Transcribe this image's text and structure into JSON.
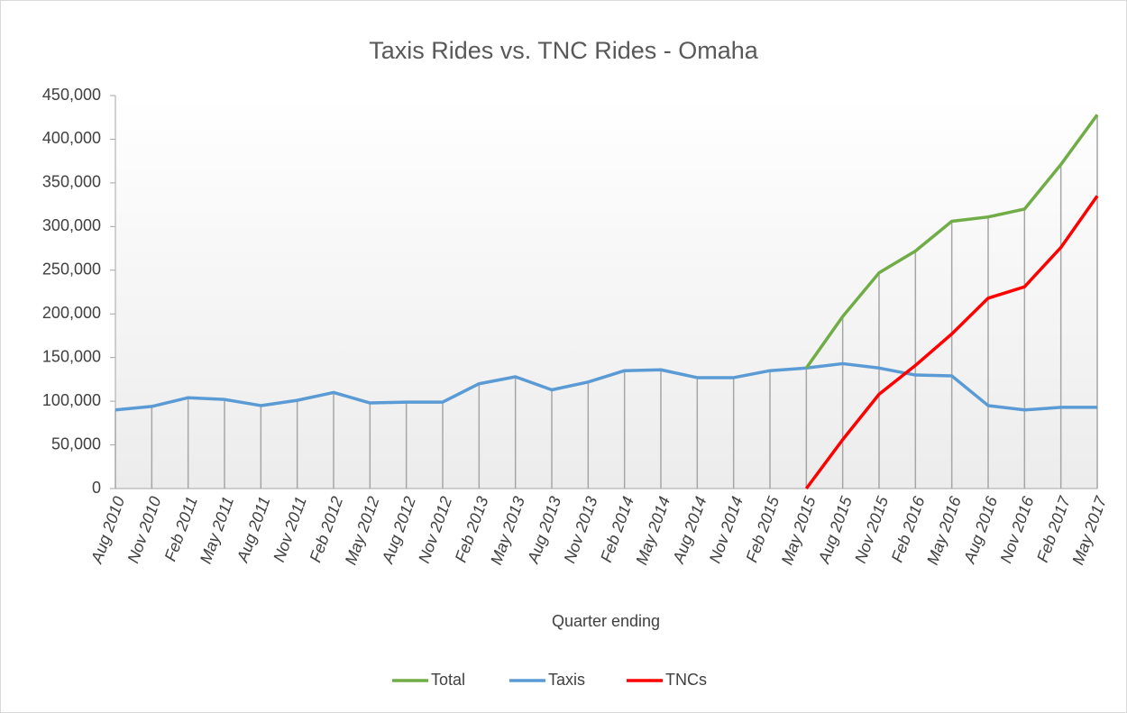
{
  "chart_data": {
    "type": "line",
    "title": "Taxis Rides vs. TNC Rides - Omaha",
    "x_label": "Quarter ending",
    "categories": [
      "Aug 2010",
      "Nov 2010",
      "Feb 2011",
      "May 2011",
      "Aug 2011",
      "Nov 2011",
      "Feb 2012",
      "May 2012",
      "Aug 2012",
      "Nov 2012",
      "Feb 2013",
      "May 2013",
      "Aug 2013",
      "Nov 2013",
      "Feb 2014",
      "May 2014",
      "Aug 2014",
      "Nov 2014",
      "Feb 2015",
      "May 2015",
      "Aug 2015",
      "Nov 2015",
      "Feb 2016",
      "May 2016",
      "Aug 2016",
      "Nov 2016",
      "Feb 2017",
      "May 2017"
    ],
    "series": [
      {
        "name": "Total",
        "color": "#70ad47",
        "values": [
          null,
          null,
          null,
          null,
          null,
          null,
          null,
          null,
          null,
          null,
          null,
          null,
          null,
          null,
          null,
          null,
          null,
          null,
          null,
          138000,
          197000,
          247000,
          272000,
          306000,
          311000,
          320000,
          371000,
          428000
        ]
      },
      {
        "name": "Taxis",
        "color": "#5b9bd5",
        "values": [
          90000,
          94000,
          104000,
          102000,
          95000,
          101000,
          110000,
          98000,
          99000,
          99000,
          120000,
          128000,
          113000,
          122000,
          135000,
          136000,
          127000,
          127000,
          135000,
          138000,
          143000,
          138000,
          130000,
          129000,
          95000,
          90000,
          93000,
          93000
        ]
      },
      {
        "name": "TNCs",
        "color": "#ff0000",
        "values": [
          null,
          null,
          null,
          null,
          null,
          null,
          null,
          null,
          null,
          null,
          null,
          null,
          null,
          null,
          null,
          null,
          null,
          null,
          null,
          0,
          56000,
          108000,
          141000,
          177000,
          218000,
          231000,
          276000,
          335000
        ]
      }
    ],
    "ylim": [
      0,
      450000
    ],
    "yticks": [
      0,
      {
        "value": 50000,
        "label": "50,000"
      },
      {
        "value": 100000,
        "label": "100,000"
      },
      {
        "value": 150000,
        "label": "150,000"
      },
      {
        "value": 200000,
        "label": "200,000"
      },
      {
        "value": 250000,
        "label": "250,000"
      },
      {
        "value": 300000,
        "label": "300,000"
      },
      {
        "value": 350000,
        "label": "350,000"
      },
      {
        "value": 400000,
        "label": "400,000"
      },
      {
        "value": 450000,
        "label": "450,000"
      }
    ],
    "drop_lines": true,
    "legend": "bottom"
  }
}
